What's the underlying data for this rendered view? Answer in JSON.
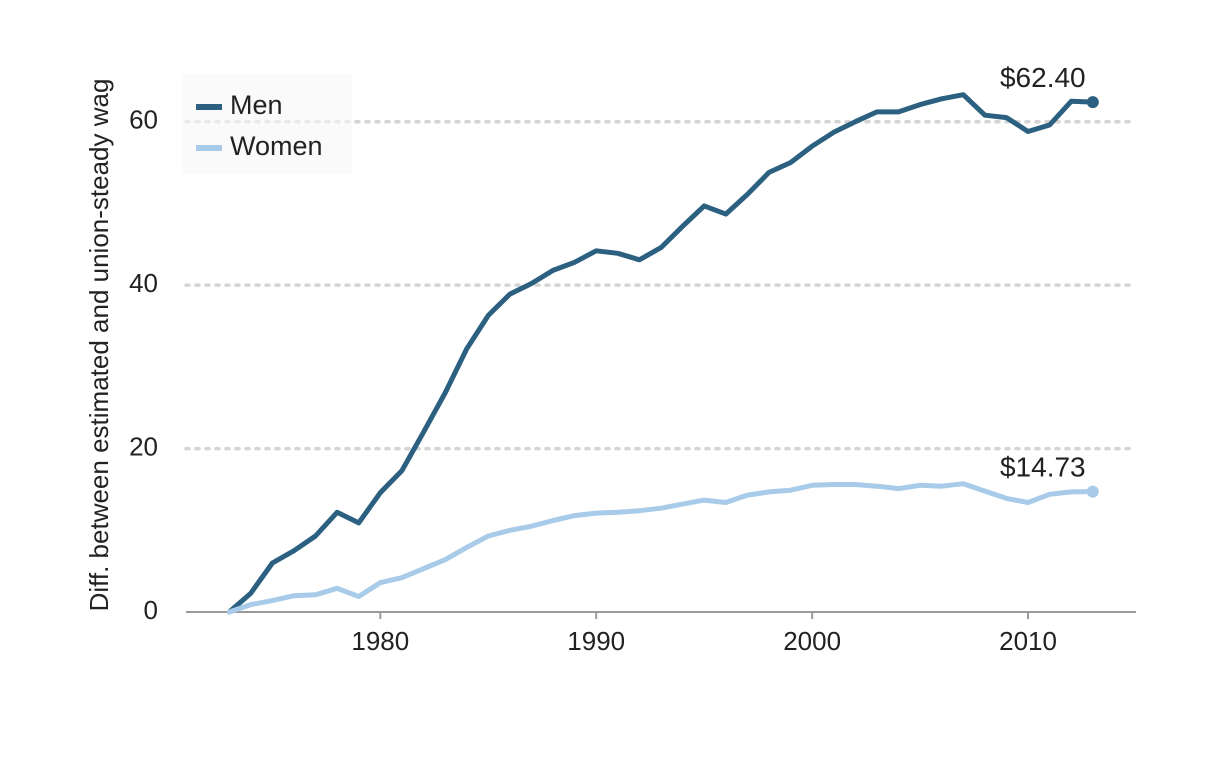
{
  "chart_data": {
    "type": "line",
    "title": "",
    "xlabel": "",
    "ylabel": "Diff. between estimated and union-steady wag",
    "xlim": [
      1971,
      2015
    ],
    "ylim": [
      0,
      70
    ],
    "x_ticks": [
      1980,
      1990,
      2000,
      2010
    ],
    "y_ticks": [
      0,
      20,
      40,
      60
    ],
    "grid": "horizontal dotted",
    "legend_position": "top-left",
    "x": [
      1973,
      1974,
      1975,
      1976,
      1977,
      1978,
      1979,
      1980,
      1981,
      1982,
      1983,
      1984,
      1985,
      1986,
      1987,
      1988,
      1989,
      1990,
      1991,
      1992,
      1993,
      1994,
      1995,
      1996,
      1997,
      1998,
      1999,
      2000,
      2001,
      2002,
      2003,
      2004,
      2005,
      2006,
      2007,
      2008,
      2009,
      2010,
      2011,
      2012,
      2013
    ],
    "series": [
      {
        "name": "Men",
        "color": "#2b6080",
        "values": [
          0,
          2.3,
          6.0,
          7.5,
          9.3,
          12.2,
          10.9,
          14.6,
          17.3,
          22.0,
          26.8,
          32.2,
          36.3,
          38.9,
          40.2,
          41.8,
          42.8,
          44.2,
          43.9,
          43.1,
          44.6,
          47.2,
          49.7,
          48.7,
          51.1,
          53.8,
          55.0,
          57.0,
          58.7,
          60.0,
          61.2,
          61.2,
          62.1,
          62.8,
          63.3,
          60.8,
          60.5,
          58.8,
          59.6,
          62.5,
          62.4
        ],
        "end_label": "$62.40"
      },
      {
        "name": "Women",
        "color": "#a7cbe8",
        "values": [
          0,
          0.9,
          1.4,
          2.0,
          2.1,
          2.9,
          1.9,
          3.6,
          4.2,
          5.3,
          6.4,
          7.9,
          9.3,
          10.0,
          10.5,
          11.2,
          11.8,
          12.1,
          12.2,
          12.4,
          12.7,
          13.2,
          13.7,
          13.4,
          14.3,
          14.7,
          14.9,
          15.5,
          15.6,
          15.6,
          15.4,
          15.1,
          15.5,
          15.4,
          15.7,
          14.8,
          13.9,
          13.4,
          14.4,
          14.7,
          14.73
        ],
        "end_label": "$14.73"
      }
    ]
  }
}
